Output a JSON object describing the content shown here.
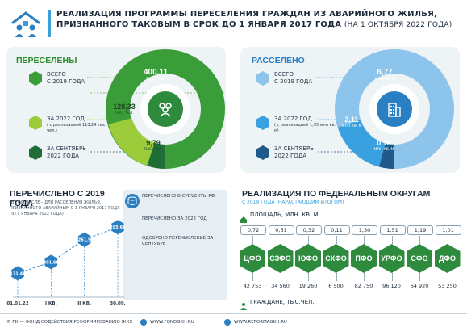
{
  "header": {
    "title_line1": "РЕАЛИЗАЦИЯ ПРОГРАММЫ ПЕРЕСЕЛЕНИЯ ГРАЖДАН ИЗ АВАРИЙНОГО ЖИЛЬЯ,",
    "title_line2": "ПРИЗНАННОГО ТАКОВЫМ В СРОК ДО 1 ЯНВАРЯ 2017 ГОДА",
    "title_note": "(НА 1 ОКТЯБРЯ 2022 ГОДА)"
  },
  "resettled": {
    "title": "ПЕРЕСЕЛЕНЫ",
    "items": [
      {
        "label": "ВСЕГО\nС 2019 ГОДА",
        "value": "400,11",
        "unit": "ТЫС. ЧЕЛ."
      },
      {
        "label": "ЗА 2022 ГОД",
        "note": "( с реализацией 113,24 тыс. чел.)",
        "value": "128,33",
        "unit": "ТЫС. ЧЕЛ."
      },
      {
        "label": "ЗА СЕНТЯБРЬ\n2022 ГОДА",
        "value": "9,79",
        "unit": "ТЫС. ЧЕЛ."
      }
    ],
    "colors": {
      "total": "#3a9d3a",
      "year": "#9ccc3a",
      "month": "#1f6e36"
    }
  },
  "relocated": {
    "title": "РАССЕЛЕНО",
    "items": [
      {
        "label": "ВСЕГО\nС 2019 ГОДА",
        "value": "6,77",
        "unit": "МЛН КВ. М"
      },
      {
        "label": "ЗА 2022 ГОД",
        "note": "( с реализацией 1,95 млн кв. м)",
        "value": "2,11",
        "unit": "МЛН КВ. М"
      },
      {
        "label": "ЗА СЕНТЯБРЬ\n2022 ГОДА",
        "value": "0,18",
        "unit": "МЛН КВ. М"
      }
    ],
    "colors": {
      "total": "#8cc4ec",
      "year": "#3aa1e0",
      "month": "#1f5a8a"
    }
  },
  "transfer": {
    "title": "ПЕРЕЧИСЛЕНО С 2019 ГОДА",
    "subtitle": "(В ТОМ ЧИСЛЕ – ДЛЯ РАССЕЛЕНИЯ ЖИЛЬЯ, ПРИЗНАННОГО АВАРИЙНЫМ С 1 ЯНВАРЯ 2017 ГОДА ПО 1 ЯНВАРЯ 2022 ГОДА)",
    "legend": [
      {
        "text": "ПЕРЕЧИСЛЕНО В СУБЪЕКТЫ РФ"
      },
      {
        "text": "ПЕРЕЧИСЛЕНО ЗА 2022 ГОД"
      },
      {
        "text": "ОДОБРЕНО ПЕРЕЧИСЛЕНИЕ ЗА СЕНТЯБРЬ"
      }
    ]
  },
  "chart_data": {
    "type": "line",
    "categories": [
      "01.01.22",
      "I КВ.",
      "II КВ.",
      "30.09."
    ],
    "values": [
      171.48,
      201.66,
      261.9,
      295.66
    ],
    "labels": [
      "171,48",
      "201,66",
      "261,9",
      "295,66"
    ],
    "title": "ПЕРЕЧИСЛЕНО С 2019 ГОДА",
    "xlabel": "",
    "ylabel": "",
    "ylim": [
      120,
      320
    ],
    "grid": false,
    "colors": {
      "line": "#2a7fc2",
      "marker": "#2a7fc2"
    }
  },
  "districts": {
    "title": "РЕАЛИЗАЦИЯ ПО ФЕДЕРАЛЬНЫМ ОКРУГАМ",
    "subtitle": "С 2019 ГОДА (НАРАСТАЮЩИМ ИТОГОМ)",
    "area_label": "ПЛОЩАДЬ, МЛН. КВ. М",
    "people_label": "ГРАЖДАНЕ, ТЫС.ЧЕЛ.",
    "items": [
      {
        "name": "ЦФО",
        "area": "0,72",
        "people": "42 753",
        "color": "#2e8b3e"
      },
      {
        "name": "СЗФО",
        "area": "0,61",
        "people": "34 560",
        "color": "#2e8b3e"
      },
      {
        "name": "ЮФО",
        "area": "0,32",
        "people": "19 260",
        "color": "#2e8b3e"
      },
      {
        "name": "СКФО",
        "area": "0,11",
        "people": "6 500",
        "color": "#2e8b3e"
      },
      {
        "name": "ПФО",
        "area": "1,30",
        "people": "82 750",
        "color": "#2e8b3e"
      },
      {
        "name": "УРФО",
        "area": "1,51",
        "people": "96 120",
        "color": "#2e8b3e"
      },
      {
        "name": "СФО",
        "area": "1,19",
        "people": "64 920",
        "color": "#2e8b3e"
      },
      {
        "name": "ДФО",
        "area": "1,01",
        "people": "53 250",
        "color": "#2e8b3e"
      }
    ]
  },
  "footer": {
    "org": "© ГК — ФОНД СОДЕЙСТВИЯ РЕФОРМИРОВАНИЮ ЖКХ",
    "site1": "WWW.FONDGKH.RU",
    "site2": "WWW.REFORMAGKH.RU"
  }
}
